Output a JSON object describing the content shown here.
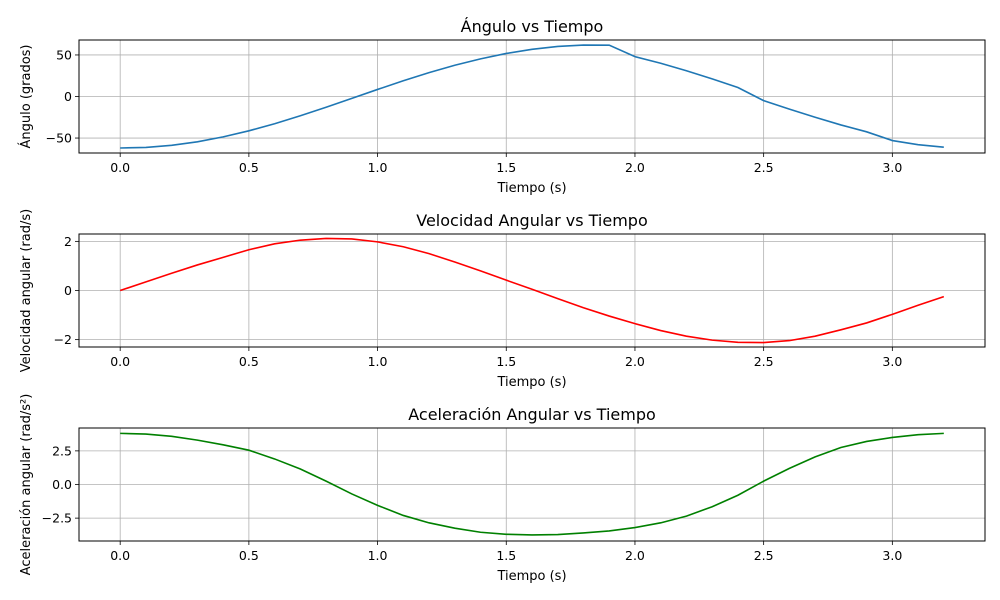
{
  "chart_data": [
    {
      "type": "line",
      "title": "Ángulo vs Tiempo",
      "xlabel": "Tiempo (s)",
      "ylabel": "Ángulo (grados)",
      "xlim": [
        -0.16,
        3.36
      ],
      "ylim": [
        -68,
        68
      ],
      "xticks": [
        0.0,
        0.5,
        1.0,
        1.5,
        2.0,
        2.5,
        3.0
      ],
      "xtick_labels": [
        "0.0",
        "0.5",
        "1.0",
        "1.5",
        "2.0",
        "2.5",
        "3.0"
      ],
      "yticks": [
        -50,
        0,
        50
      ],
      "ytick_labels": [
        "−50",
        "0",
        "50"
      ],
      "grid": true,
      "color": "#1f77b4",
      "series": [
        {
          "x": [
            0.0,
            0.1,
            0.2,
            0.3,
            0.4,
            0.5,
            0.6,
            0.7,
            0.8,
            0.9,
            1.0,
            1.1,
            1.2,
            1.3,
            1.4,
            1.5,
            1.6,
            1.7,
            1.8,
            1.9,
            2.0,
            2.1,
            2.2,
            2.3,
            2.4,
            2.5,
            2.6,
            2.7,
            2.8,
            2.9,
            3.0,
            3.1,
            3.2
          ],
          "y": [
            -62.0,
            -61.3,
            -58.7,
            -54.5,
            -48.6,
            -41.3,
            -32.8,
            -23.2,
            -13.0,
            -2.2,
            8.5,
            18.9,
            28.7,
            37.6,
            45.3,
            51.8,
            56.8,
            60.3,
            61.9,
            61.8,
            48.0,
            40.0,
            31.0,
            21.2,
            10.8,
            -5.0,
            -15.2,
            -25.0,
            -34.2,
            -42.5,
            -53.0,
            -58.0,
            -61.0
          ]
        }
      ]
    },
    {
      "type": "line",
      "title": "Velocidad Angular vs Tiempo",
      "xlabel": "Tiempo (s)",
      "ylabel": "Velocidad angular (rad/s)",
      "xlim": [
        -0.16,
        3.36
      ],
      "ylim": [
        -2.3,
        2.3
      ],
      "xticks": [
        0.0,
        0.5,
        1.0,
        1.5,
        2.0,
        2.5,
        3.0
      ],
      "xtick_labels": [
        "0.0",
        "0.5",
        "1.0",
        "1.5",
        "2.0",
        "2.5",
        "3.0"
      ],
      "yticks": [
        -2,
        0,
        2
      ],
      "ytick_labels": [
        "−2",
        "0",
        "2"
      ],
      "grid": true,
      "color": "#ff0000",
      "series": [
        {
          "x": [
            0.0,
            0.1,
            0.2,
            0.3,
            0.4,
            0.5,
            0.6,
            0.7,
            0.8,
            0.9,
            1.0,
            1.1,
            1.2,
            1.3,
            1.4,
            1.5,
            1.6,
            1.7,
            1.8,
            1.9,
            2.0,
            2.1,
            2.2,
            2.3,
            2.4,
            2.5,
            2.6,
            2.7,
            2.8,
            2.9,
            3.0,
            3.1,
            3.2
          ],
          "y": [
            0.0,
            0.35,
            0.7,
            1.04,
            1.35,
            1.66,
            1.9,
            2.05,
            2.12,
            2.1,
            1.98,
            1.78,
            1.5,
            1.16,
            0.8,
            0.42,
            0.05,
            -0.33,
            -0.7,
            -1.04,
            -1.35,
            -1.63,
            -1.86,
            -2.02,
            -2.11,
            -2.12,
            -2.04,
            -1.86,
            -1.6,
            -1.32,
            -0.97,
            -0.6,
            -0.25
          ]
        }
      ]
    },
    {
      "type": "line",
      "title": "Aceleración Angular vs Tiempo",
      "xlabel": "Tiempo (s)",
      "ylabel": "Aceleración angular (rad/s²)",
      "xlim": [
        -0.16,
        3.36
      ],
      "ylim": [
        -4.2,
        4.2
      ],
      "xticks": [
        0.0,
        0.5,
        1.0,
        1.5,
        2.0,
        2.5,
        3.0
      ],
      "xtick_labels": [
        "0.0",
        "0.5",
        "1.0",
        "1.5",
        "2.0",
        "2.5",
        "3.0"
      ],
      "yticks": [
        -2.5,
        0.0,
        2.5
      ],
      "ytick_labels": [
        "−2.5",
        "0.0",
        "2.5"
      ],
      "grid": true,
      "color": "#008000",
      "series": [
        {
          "x": [
            0.0,
            0.1,
            0.2,
            0.3,
            0.4,
            0.5,
            0.6,
            0.7,
            0.8,
            0.9,
            1.0,
            1.1,
            1.2,
            1.3,
            1.4,
            1.5,
            1.6,
            1.7,
            1.8,
            1.9,
            2.0,
            2.1,
            2.2,
            2.3,
            2.4,
            2.5,
            2.6,
            2.7,
            2.8,
            2.9,
            3.0,
            3.1,
            3.2
          ],
          "y": [
            3.8,
            3.75,
            3.58,
            3.3,
            2.95,
            2.55,
            1.9,
            1.15,
            0.25,
            -0.7,
            -1.55,
            -2.3,
            -2.85,
            -3.25,
            -3.55,
            -3.7,
            -3.75,
            -3.72,
            -3.6,
            -3.45,
            -3.2,
            -2.85,
            -2.35,
            -1.65,
            -0.8,
            0.25,
            1.2,
            2.05,
            2.75,
            3.2,
            3.5,
            3.7,
            3.8
          ]
        }
      ]
    }
  ]
}
